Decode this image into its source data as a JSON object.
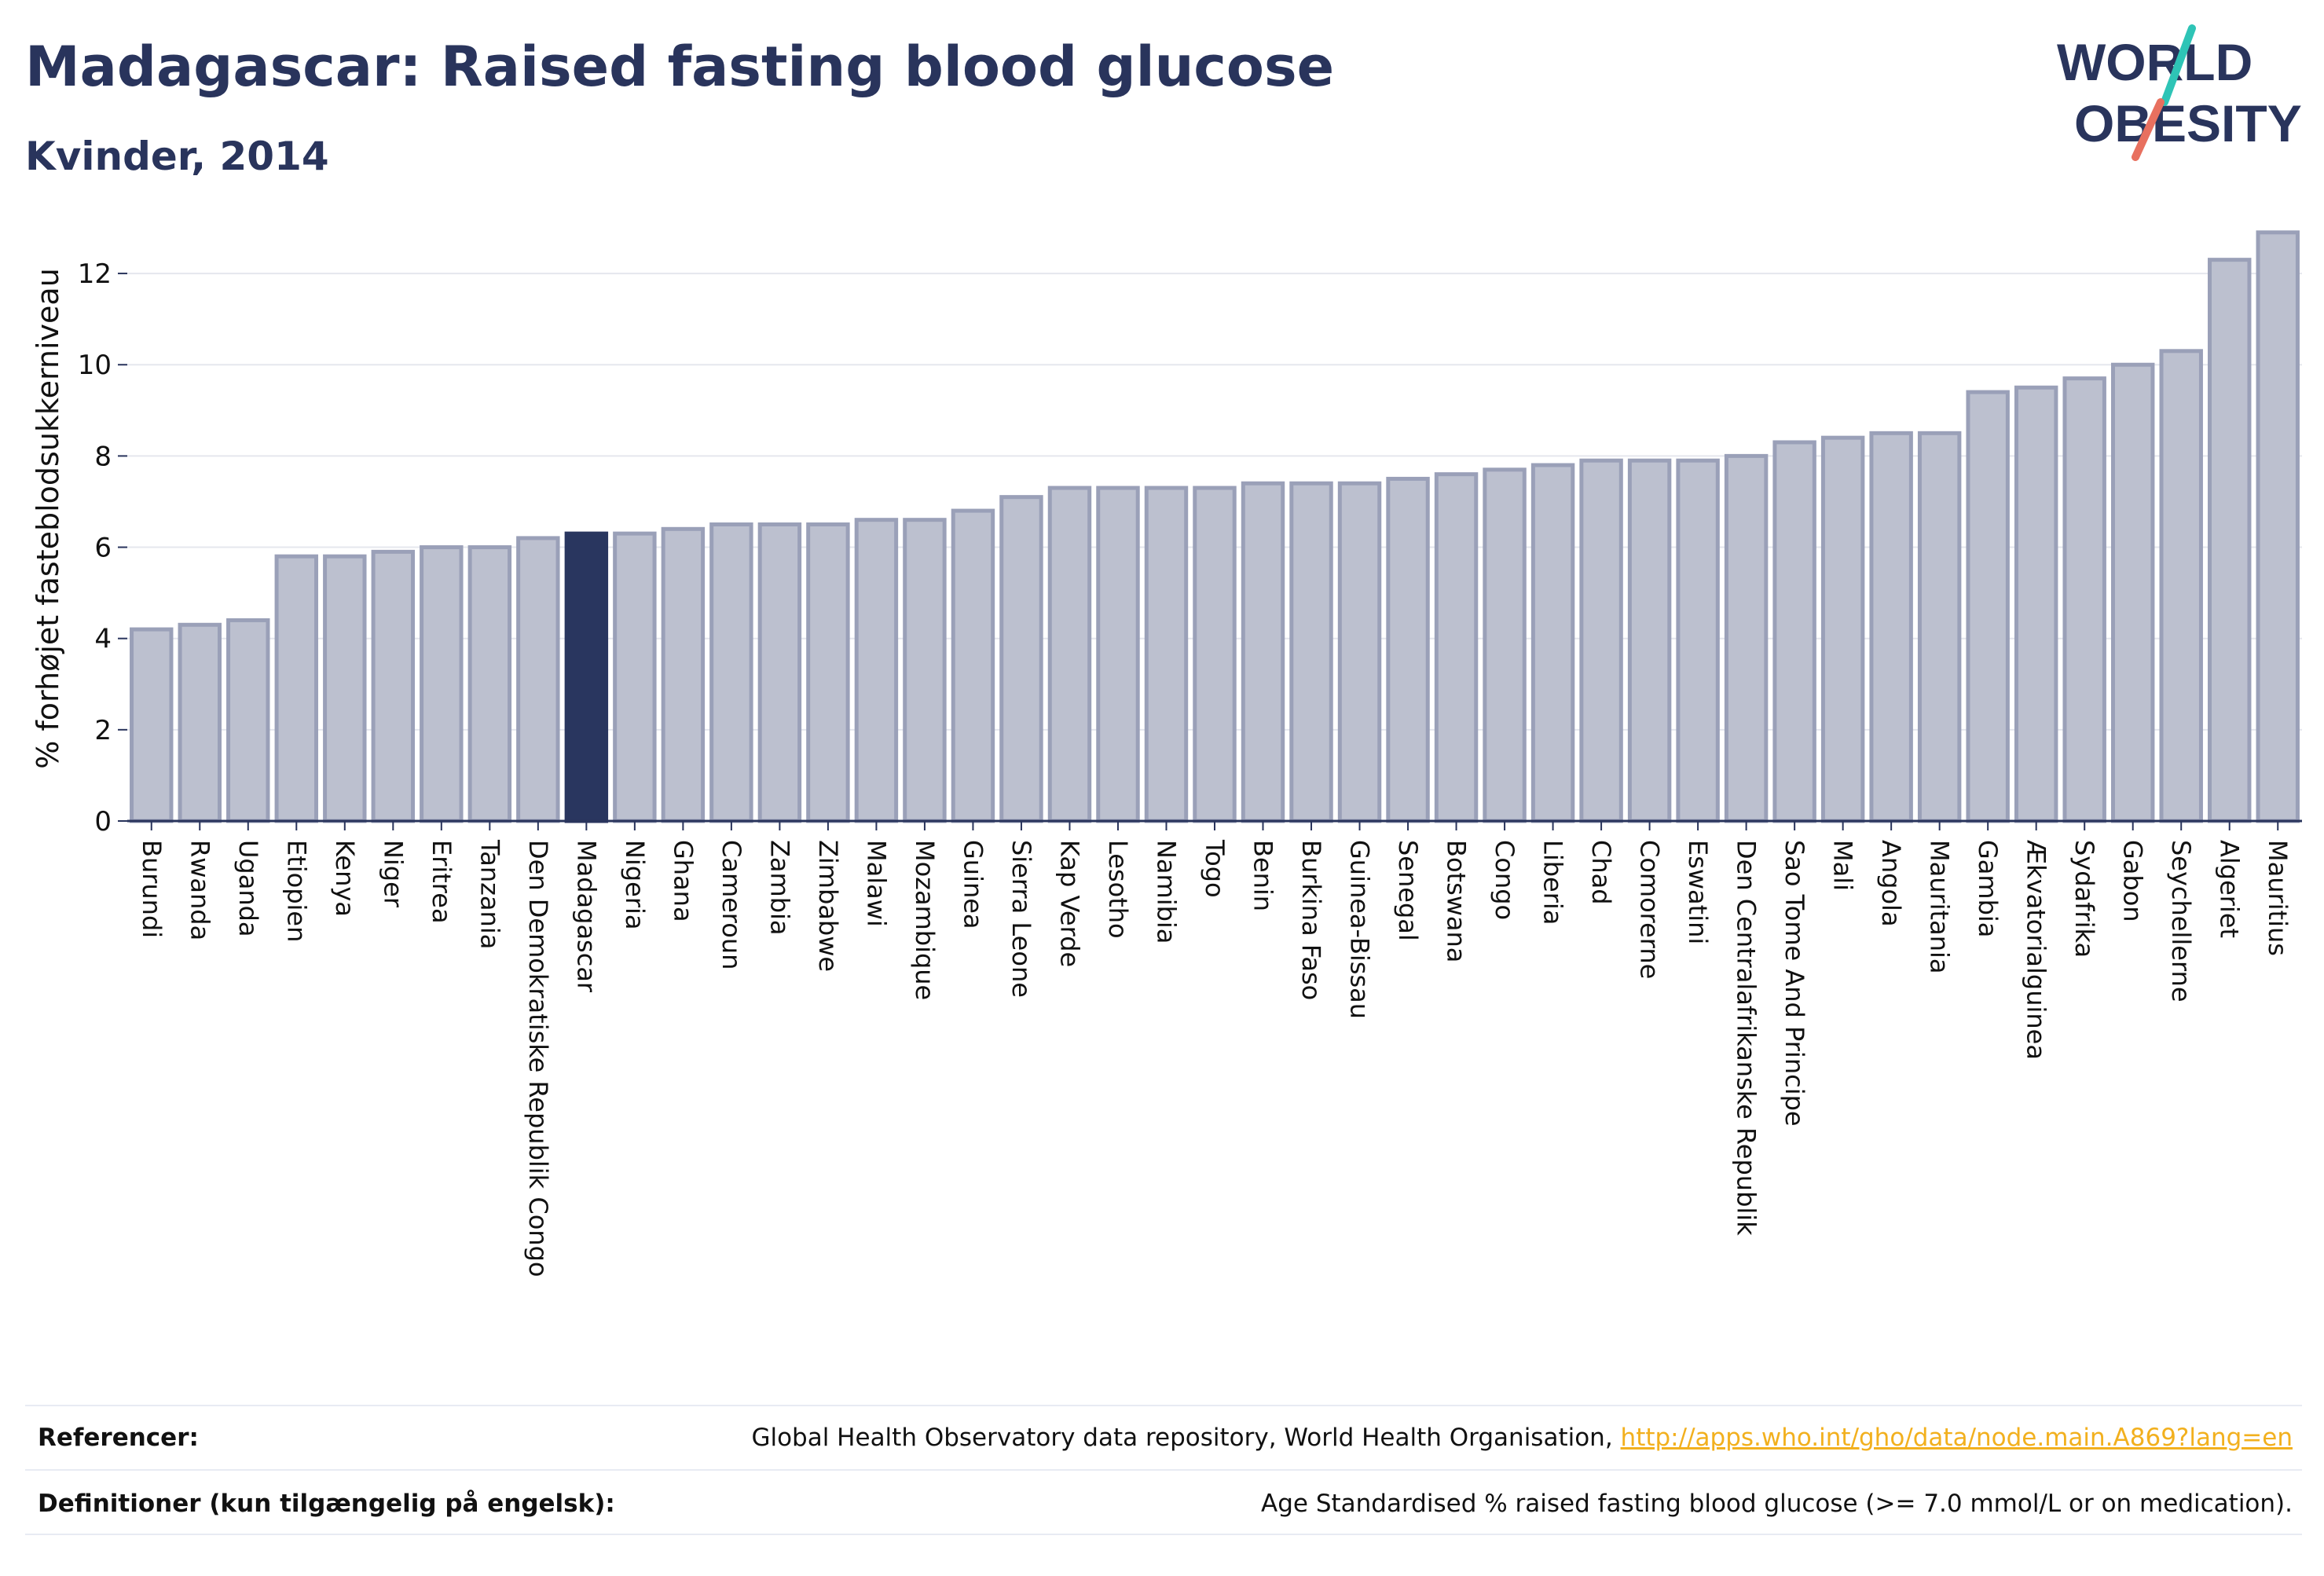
{
  "header": {
    "title": "Madagascar: Raised fasting blood glucose",
    "subtitle": "Kvinder, 2014"
  },
  "logo": {
    "line1": "WORLD",
    "line2": "OBESITY",
    "colors": {
      "text": "#29345c",
      "slash_top": "#2ec4b6",
      "slash_bottom": "#e8705f"
    }
  },
  "chart_data": {
    "type": "bar",
    "ylabel": "% forhøjet fasteblodsukkerniveau",
    "xlabel": "",
    "ylim": [
      0,
      13
    ],
    "yticks": [
      0,
      2,
      4,
      6,
      8,
      10,
      12
    ],
    "grid": true,
    "highlight": "Madagascar",
    "colors": {
      "bar": "#bcc0cf",
      "bar_edge": "#9aa0b8",
      "highlight": "#29365f",
      "grid": "#e5e7ee",
      "axis": "#29345c"
    },
    "categories": [
      "Burundi",
      "Rwanda",
      "Uganda",
      "Etiopien",
      "Kenya",
      "Niger",
      "Eritrea",
      "Tanzania",
      "Den Demokratiske Republik Congo",
      "Madagascar",
      "Nigeria",
      "Ghana",
      "Cameroun",
      "Zambia",
      "Zimbabwe",
      "Malawi",
      "Mozambique",
      "Guinea",
      "Sierra Leone",
      "Kap Verde",
      "Lesotho",
      "Namibia",
      "Togo",
      "Benin",
      "Burkina Faso",
      "Guinea-Bissau",
      "Senegal",
      "Botswana",
      "Congo",
      "Liberia",
      "Chad",
      "Comorerne",
      "Eswatini",
      "Den Centralafrikanske Republik",
      "Sao Tome And Principe",
      "Mali",
      "Angola",
      "Mauritania",
      "Gambia",
      "Ækvatorialguinea",
      "Sydafrika",
      "Gabon",
      "Seychellerne",
      "Algeriet",
      "Mauritius"
    ],
    "values": [
      4.2,
      4.3,
      4.4,
      5.8,
      5.8,
      5.9,
      6.0,
      6.0,
      6.2,
      6.3,
      6.3,
      6.4,
      6.5,
      6.5,
      6.5,
      6.6,
      6.6,
      6.8,
      7.1,
      7.3,
      7.3,
      7.3,
      7.3,
      7.4,
      7.4,
      7.4,
      7.5,
      7.6,
      7.7,
      7.8,
      7.9,
      7.9,
      7.9,
      8.0,
      8.3,
      8.4,
      8.5,
      8.5,
      9.4,
      9.5,
      9.7,
      10.0,
      10.3,
      12.3,
      12.9
    ]
  },
  "footer": {
    "references_label": "Referencer:",
    "references_text": "Global Health Observatory data repository, World Health Organisation, ",
    "references_link": "http://apps.who.int/gho/data/node.main.A869?lang=en",
    "definitions_label": "Definitioner (kun tilgængelig på engelsk):",
    "definitions_text": "Age Standardised % raised fasting blood glucose (>= 7.0 mmol/L or on medication)."
  }
}
